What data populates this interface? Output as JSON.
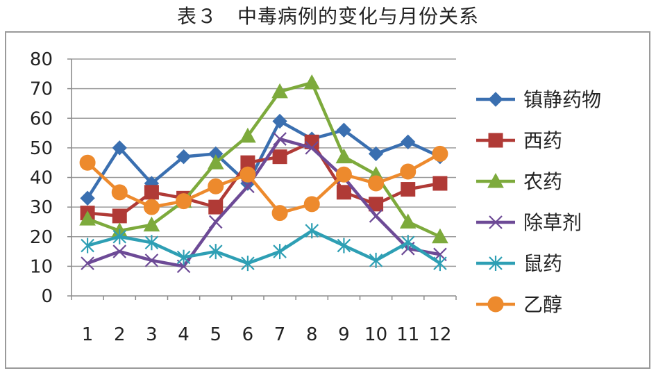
{
  "title": "表３　中毒病例的变化与月份关系",
  "chart_data": {
    "type": "line",
    "title": "",
    "xlabel": "",
    "ylabel": "",
    "categories": [
      "1",
      "2",
      "3",
      "4",
      "5",
      "6",
      "7",
      "8",
      "9",
      "10",
      "11",
      "12"
    ],
    "yticks": [
      "0",
      "10",
      "20",
      "30",
      "40",
      "50",
      "60",
      "70",
      "80"
    ],
    "ylim": [
      0,
      80
    ],
    "grid": true,
    "legend_position": "right",
    "series": [
      {
        "name": "镇静药物",
        "color": "#3A6FB0",
        "marker": "diamond",
        "values": [
          33,
          50,
          38,
          47,
          48,
          38,
          59,
          53,
          56,
          48,
          52,
          47
        ]
      },
      {
        "name": "西药",
        "color": "#B03A36",
        "marker": "square",
        "values": [
          28,
          27,
          35,
          33,
          30,
          45,
          47,
          52,
          35,
          31,
          36,
          38
        ]
      },
      {
        "name": "农药",
        "color": "#7DAA3C",
        "marker": "triangle",
        "values": [
          26,
          22,
          24,
          32,
          45,
          54,
          69,
          72,
          47,
          41,
          25,
          20
        ]
      },
      {
        "name": "除草剂",
        "color": "#6D4A96",
        "marker": "x",
        "values": [
          11,
          15,
          12,
          10,
          25,
          37,
          53,
          50,
          40,
          27,
          16,
          14
        ]
      },
      {
        "name": "鼠药",
        "color": "#2E9FB4",
        "marker": "star",
        "values": [
          17,
          20,
          18,
          13,
          15,
          11,
          15,
          22,
          17,
          12,
          18,
          11
        ]
      },
      {
        "name": "乙醇",
        "color": "#ED8A2D",
        "marker": "circle",
        "values": [
          45,
          35,
          30,
          32,
          37,
          41,
          28,
          31,
          41,
          38,
          42,
          48
        ]
      }
    ]
  }
}
